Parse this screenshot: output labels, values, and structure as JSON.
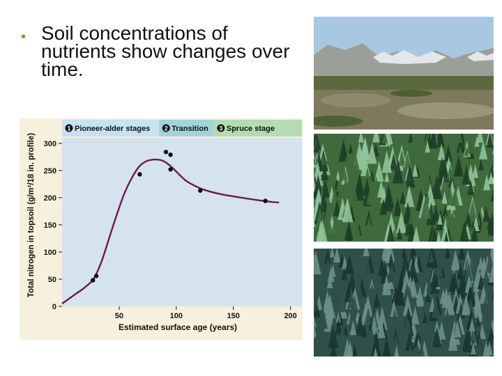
{
  "slide": {
    "bullet_text": "Soil concentrations of nutrients show changes over time."
  },
  "stages": [
    {
      "label": "Pioneer-alder stages",
      "number": "1",
      "color": "#c5e3f3",
      "x_start": 0,
      "x_end": 85
    },
    {
      "label": "Transition",
      "number": "2",
      "color": "#a3d3d9",
      "x_start": 85,
      "x_end": 133
    },
    {
      "label": "Spruce stage",
      "number": "3",
      "color": "#b3dcb2",
      "x_start": 133,
      "x_end": 210
    }
  ],
  "chart_data": {
    "type": "scatter",
    "xlabel": "Estimated surface age (years)",
    "ylabel": "Total nitrogen in topsoil (g/m²/18 in. profile)",
    "xlim": [
      0,
      210
    ],
    "ylim": [
      0,
      310
    ],
    "xticks": [
      50,
      100,
      150,
      200
    ],
    "yticks": [
      0,
      50,
      100,
      150,
      200,
      250,
      300
    ],
    "grid": false,
    "points": [
      {
        "x": 27,
        "y": 48
      },
      {
        "x": 30,
        "y": 56
      },
      {
        "x": 68,
        "y": 243
      },
      {
        "x": 91,
        "y": 284
      },
      {
        "x": 95,
        "y": 279
      },
      {
        "x": 95,
        "y": 252
      },
      {
        "x": 121,
        "y": 213
      },
      {
        "x": 178,
        "y": 194
      }
    ],
    "trend_line": {
      "x": [
        0,
        10,
        20,
        28,
        35,
        45,
        55,
        65,
        72,
        80,
        88,
        95,
        100,
        108,
        116,
        125,
        140,
        160,
        180,
        190
      ],
      "y": [
        5,
        20,
        35,
        52,
        85,
        150,
        210,
        250,
        265,
        270,
        268,
        258,
        248,
        232,
        222,
        214,
        206,
        199,
        193,
        191
      ]
    },
    "colors": {
      "curve": "#6e1652",
      "points": "#111111",
      "plot_bg": "#d5e3ec",
      "panel_bg": "#f6f0dc"
    }
  },
  "photos": [
    {
      "name": "pioneer-stage-photo",
      "sky": "#a8c8e2",
      "mountain": "#9aa098",
      "snow": "#e8ecef",
      "ground": "#7a7a5a",
      "vegetation": "#4f5f36"
    },
    {
      "name": "transition-stage-photo",
      "base": "#3e6a3c",
      "light": "#8fc39a",
      "dark": "#1e3d26"
    },
    {
      "name": "spruce-stage-photo",
      "base": "#2f5048",
      "light": "#6c8f8a",
      "dark": "#1b3330"
    }
  ]
}
